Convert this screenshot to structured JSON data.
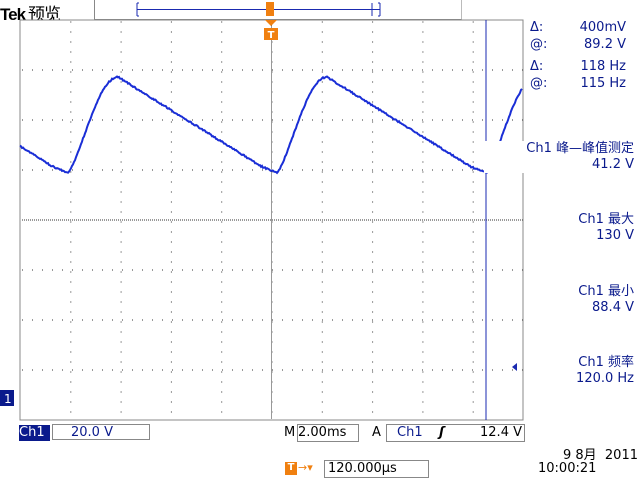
{
  "header": {
    "brand": "Tek",
    "mode": "预览"
  },
  "cursor_readouts": [
    {
      "symbol": "Δ:",
      "value": "400mV"
    },
    {
      "symbol": "@:",
      "value": "89.2 V"
    },
    {
      "symbol": "Δ:",
      "value": "118 Hz"
    },
    {
      "symbol": "@:",
      "value": "115 Hz"
    }
  ],
  "measurements": [
    {
      "name": "Ch1 峰—峰值测定",
      "value": "41.2 V"
    },
    {
      "name": "Ch1 最大",
      "value": "130 V"
    },
    {
      "name": "Ch1 最小",
      "value": "88.4 V"
    },
    {
      "name": "Ch1 频率",
      "value": "120.0 Hz"
    }
  ],
  "status": {
    "channel": "Ch1",
    "volts_per_div": "20.0 V",
    "time_prefix": "M",
    "time_per_div": "2.00ms",
    "trigger_prefix": "A",
    "trigger_source": "Ch1",
    "trigger_slope": "rising",
    "trigger_level": "12.4 V",
    "trigger_offset": "120.000μs",
    "date": "9 8月  2011",
    "time": "10:00:21",
    "channel_marker": "1",
    "trigger_marker": "T"
  },
  "colors": {
    "trace": "#1a2ed6",
    "text": "#0a1a8c",
    "trigger": "#f08010",
    "cursor": "#1a2ab0"
  }
}
